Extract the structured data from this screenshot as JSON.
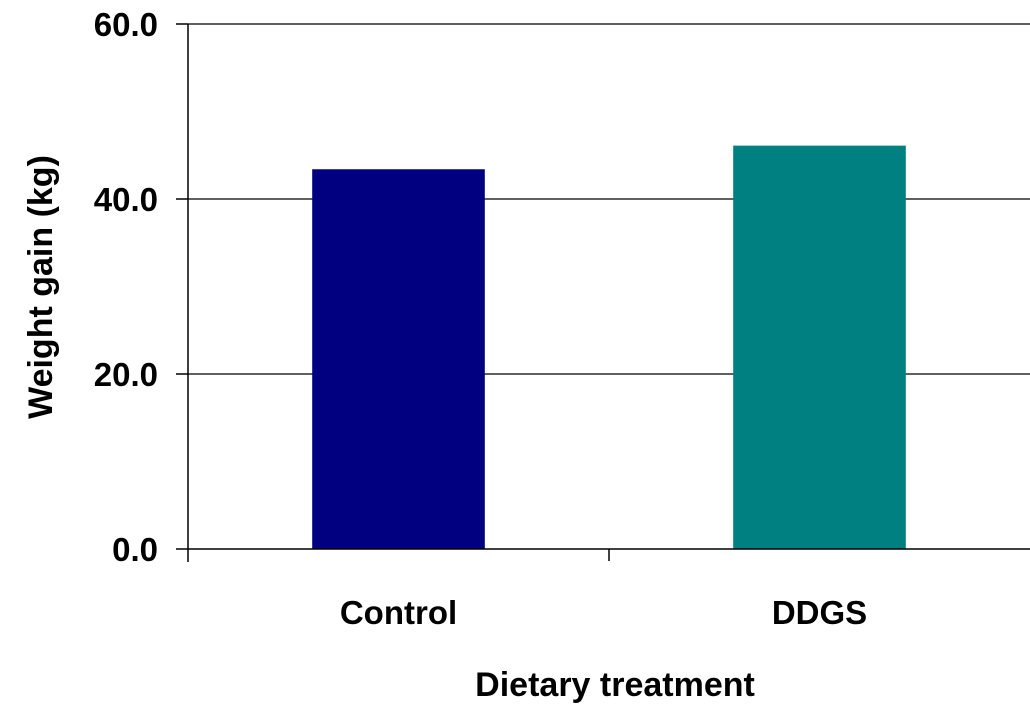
{
  "chart_data": {
    "type": "bar",
    "title": "",
    "xlabel": "Dietary treatment",
    "ylabel": "Weight gain (kg)",
    "categories": [
      "Control",
      "DDGS"
    ],
    "values": [
      43.4,
      46.1
    ],
    "bar_colors": [
      "#000080",
      "#008080"
    ],
    "ylim": [
      0,
      60
    ],
    "yticks": [
      0,
      20,
      40,
      60
    ],
    "ytick_labels": [
      "0.0",
      "20.0",
      "40.0",
      "60.0"
    ],
    "grid": true,
    "legend": "none"
  }
}
